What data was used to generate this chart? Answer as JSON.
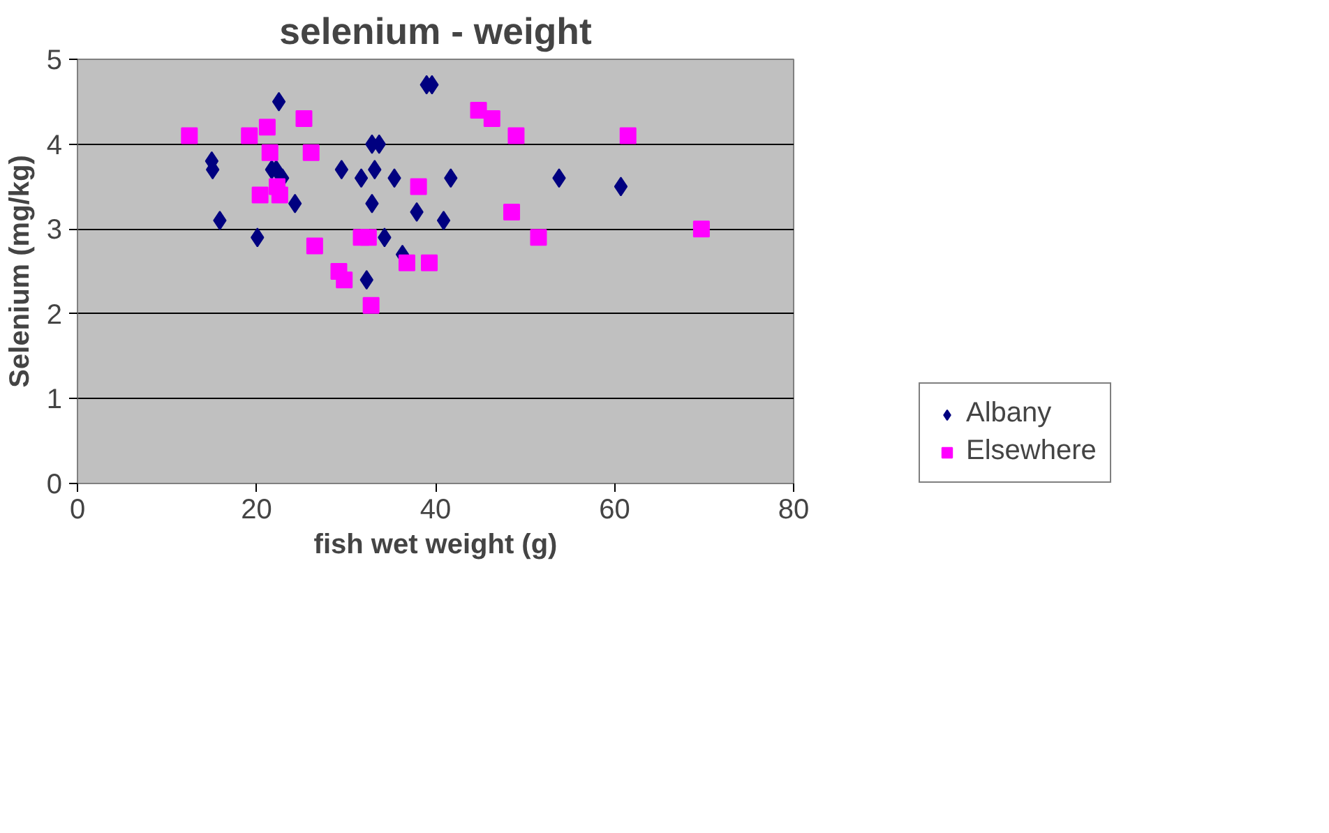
{
  "chart_data": {
    "type": "scatter",
    "title": "selenium - weight",
    "xlabel": "fish wet weight (g)",
    "ylabel": "Selenium (mg/kg)",
    "xlim": [
      0,
      80
    ],
    "xticks": [
      0,
      20,
      40,
      60,
      80
    ],
    "ylim": [
      0,
      5
    ],
    "yticks": [
      0,
      1,
      2,
      3,
      4,
      5
    ],
    "grid": "y",
    "legend": "right",
    "series": [
      {
        "name": "Albany",
        "color": "#000080",
        "marker": "diamond",
        "x": [
          15.0,
          15.1,
          15.9,
          20.1,
          22.5,
          21.7,
          22.2,
          22.9,
          24.3,
          29.5,
          31.7,
          32.9,
          33.7,
          33.2,
          32.9,
          34.3,
          32.3,
          35.4,
          36.3,
          37.9,
          39.0,
          39.6,
          40.9,
          41.7,
          53.8,
          60.7
        ],
        "values": [
          3.8,
          3.7,
          3.1,
          2.9,
          4.5,
          3.7,
          3.7,
          3.6,
          3.3,
          3.7,
          3.6,
          4.0,
          4.0,
          3.7,
          3.3,
          2.9,
          2.4,
          3.6,
          2.7,
          3.2,
          4.7,
          4.7,
          3.1,
          3.6,
          3.6,
          3.5
        ]
      },
      {
        "name": "Elsewhere",
        "color": "#ff00ff",
        "marker": "square",
        "x": [
          12.5,
          19.2,
          21.2,
          21.5,
          20.4,
          22.3,
          22.6,
          25.3,
          26.1,
          26.5,
          29.2,
          29.8,
          31.7,
          32.5,
          32.8,
          36.8,
          38.1,
          39.3,
          44.8,
          46.3,
          49.0,
          48.5,
          51.5,
          61.5,
          69.7
        ],
        "values": [
          4.1,
          4.1,
          4.2,
          3.9,
          3.4,
          3.5,
          3.4,
          4.3,
          3.9,
          2.8,
          2.5,
          2.4,
          2.9,
          2.9,
          2.1,
          2.6,
          3.5,
          2.6,
          4.4,
          4.3,
          4.1,
          3.2,
          2.9,
          4.1,
          3.0
        ]
      }
    ]
  }
}
